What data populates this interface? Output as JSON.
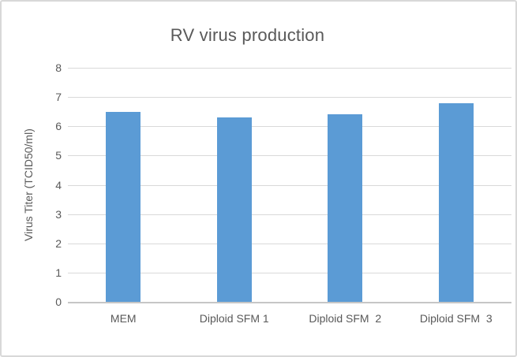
{
  "window": {
    "background_color": "#FFFFFF",
    "border_color": "#D8D8D8"
  },
  "chart_data": {
    "type": "bar",
    "title": "RV virus production",
    "categories": [
      "MEM",
      "Diploid SFM 1",
      "Diploid SFM  2",
      "Diploid SFM  3"
    ],
    "values": [
      6.5,
      6.3,
      6.4,
      6.8
    ],
    "xlabel": "",
    "ylabel": "Virus Titer (TCID50/ml)",
    "ylim": [
      0,
      8
    ],
    "yticks": [
      0,
      1,
      2,
      3,
      4,
      5,
      6,
      7,
      8
    ],
    "grid": "horizontal",
    "legend": "none",
    "bar_color": "#5B9BD5",
    "gridline_color": "#D9D9D9",
    "axis_line_color": "#C6C6C6",
    "text_color": "#595959"
  }
}
